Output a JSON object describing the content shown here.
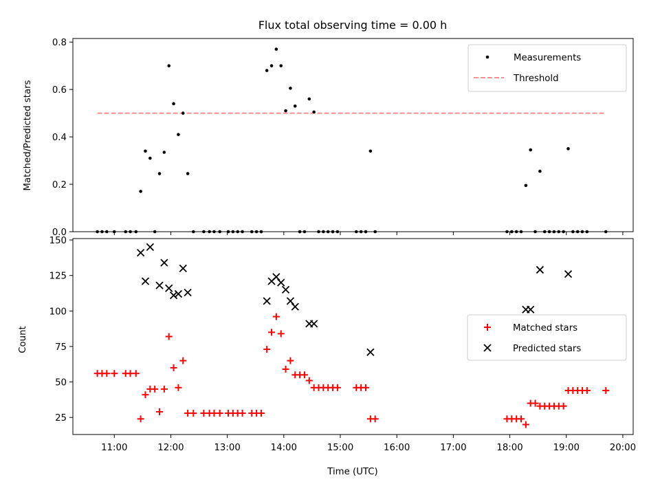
{
  "chart_data": [
    {
      "type": "scatter",
      "title": "Flux total observing time = 0.00 h",
      "xlabel": "",
      "ylabel": "Matched/Predicted stars",
      "xlim": [
        "10:16",
        "20:11"
      ],
      "ylim": [
        0,
        0.815
      ],
      "yticks": [
        "0.0",
        "0.2",
        "0.4",
        "0.6",
        "0.8"
      ],
      "grid": false,
      "legend_position": "top-right",
      "threshold": {
        "name": "Threshold",
        "value": 0.5,
        "x_start": "10:42",
        "x_end": "19:42",
        "color": "#ff7f7f",
        "style": "dashed"
      },
      "series": [
        {
          "name": "Measurements",
          "color": "#000000",
          "marker": "dot",
          "points": [
            [
              "10:42",
              0
            ],
            [
              "10:47",
              0
            ],
            [
              "10:52",
              0
            ],
            [
              "11:00",
              0
            ],
            [
              "11:12",
              0
            ],
            [
              "11:17",
              0
            ],
            [
              "11:23",
              0
            ],
            [
              "11:28",
              0.17
            ],
            [
              "11:33",
              0.34
            ],
            [
              "11:38",
              0.31
            ],
            [
              "11:43",
              0
            ],
            [
              "11:48",
              0.245
            ],
            [
              "11:53",
              0.335
            ],
            [
              "11:58",
              0.7
            ],
            [
              "12:03",
              0.54
            ],
            [
              "12:08",
              0.41
            ],
            [
              "12:13",
              0.5
            ],
            [
              "12:18",
              0.245
            ],
            [
              "12:24",
              0
            ],
            [
              "12:35",
              0
            ],
            [
              "12:41",
              0
            ],
            [
              "12:46",
              0
            ],
            [
              "12:52",
              0
            ],
            [
              "13:01",
              0
            ],
            [
              "13:06",
              0
            ],
            [
              "13:11",
              0
            ],
            [
              "13:16",
              0
            ],
            [
              "13:26",
              0
            ],
            [
              "13:31",
              0
            ],
            [
              "13:36",
              0
            ],
            [
              "13:42",
              0.68
            ],
            [
              "13:47",
              0.7
            ],
            [
              "13:52",
              0.77
            ],
            [
              "13:57",
              0.7
            ],
            [
              "14:02",
              0.51
            ],
            [
              "14:07",
              0.605
            ],
            [
              "14:12",
              0.53
            ],
            [
              "14:17",
              0
            ],
            [
              "14:22",
              0
            ],
            [
              "14:27",
              0.56
            ],
            [
              "14:32",
              0.505
            ],
            [
              "14:37",
              0
            ],
            [
              "14:42",
              0
            ],
            [
              "14:47",
              0
            ],
            [
              "14:52",
              0
            ],
            [
              "14:57",
              0
            ],
            [
              "15:17",
              0
            ],
            [
              "15:22",
              0
            ],
            [
              "15:27",
              0
            ],
            [
              "15:32",
              0.34
            ],
            [
              "15:37",
              0
            ],
            [
              "17:57",
              0
            ],
            [
              "18:02",
              0
            ],
            [
              "18:07",
              0
            ],
            [
              "18:12",
              0
            ],
            [
              "18:17",
              0.195
            ],
            [
              "18:22",
              0.345
            ],
            [
              "18:27",
              0
            ],
            [
              "18:32",
              0.255
            ],
            [
              "18:37",
              0
            ],
            [
              "18:42",
              0
            ],
            [
              "18:47",
              0
            ],
            [
              "18:52",
              0
            ],
            [
              "18:57",
              0
            ],
            [
              "19:02",
              0.35
            ],
            [
              "19:07",
              0
            ],
            [
              "19:12",
              0
            ],
            [
              "19:17",
              0
            ],
            [
              "19:22",
              0
            ],
            [
              "19:42",
              0
            ]
          ]
        }
      ]
    },
    {
      "type": "scatter",
      "title": "",
      "xlabel": "Time (UTC)",
      "ylabel": "Count",
      "xlim": [
        "10:16",
        "20:11"
      ],
      "ylim": [
        13,
        151
      ],
      "yticks": [
        "25",
        "50",
        "75",
        "100",
        "125",
        "150"
      ],
      "xticks": [
        "11:00",
        "12:00",
        "13:00",
        "14:00",
        "15:00",
        "16:00",
        "17:00",
        "18:00",
        "19:00",
        "20:00"
      ],
      "grid": false,
      "legend_position": "center-right",
      "series": [
        {
          "name": "Matched stars",
          "color": "#ff0000",
          "marker": "plus",
          "points": [
            [
              "10:42",
              56
            ],
            [
              "10:47",
              56
            ],
            [
              "10:52",
              56
            ],
            [
              "11:00",
              56
            ],
            [
              "11:12",
              56
            ],
            [
              "11:17",
              56
            ],
            [
              "11:23",
              56
            ],
            [
              "11:28",
              24
            ],
            [
              "11:33",
              41
            ],
            [
              "11:38",
              45
            ],
            [
              "11:43",
              45
            ],
            [
              "11:48",
              29
            ],
            [
              "11:53",
              45
            ],
            [
              "11:58",
              82
            ],
            [
              "12:03",
              60
            ],
            [
              "12:08",
              46
            ],
            [
              "12:13",
              65
            ],
            [
              "12:18",
              28
            ],
            [
              "12:24",
              28
            ],
            [
              "12:35",
              28
            ],
            [
              "12:41",
              28
            ],
            [
              "12:46",
              28
            ],
            [
              "12:52",
              28
            ],
            [
              "13:01",
              28
            ],
            [
              "13:06",
              28
            ],
            [
              "13:11",
              28
            ],
            [
              "13:16",
              28
            ],
            [
              "13:26",
              28
            ],
            [
              "13:31",
              28
            ],
            [
              "13:36",
              28
            ],
            [
              "13:42",
              73
            ],
            [
              "13:47",
              85
            ],
            [
              "13:52",
              96
            ],
            [
              "13:57",
              84
            ],
            [
              "14:02",
              59
            ],
            [
              "14:07",
              65
            ],
            [
              "14:12",
              55
            ],
            [
              "14:17",
              55
            ],
            [
              "14:22",
              55
            ],
            [
              "14:27",
              51
            ],
            [
              "14:32",
              46
            ],
            [
              "14:37",
              46
            ],
            [
              "14:42",
              46
            ],
            [
              "14:47",
              46
            ],
            [
              "14:52",
              46
            ],
            [
              "14:57",
              46
            ],
            [
              "15:17",
              46
            ],
            [
              "15:22",
              46
            ],
            [
              "15:27",
              46
            ],
            [
              "15:32",
              24
            ],
            [
              "15:37",
              24
            ],
            [
              "17:57",
              24
            ],
            [
              "18:02",
              24
            ],
            [
              "18:07",
              24
            ],
            [
              "18:12",
              24
            ],
            [
              "18:17",
              20
            ],
            [
              "18:22",
              35
            ],
            [
              "18:27",
              35
            ],
            [
              "18:32",
              33
            ],
            [
              "18:37",
              33
            ],
            [
              "18:42",
              33
            ],
            [
              "18:47",
              33
            ],
            [
              "18:52",
              33
            ],
            [
              "18:57",
              33
            ],
            [
              "19:02",
              44
            ],
            [
              "19:07",
              44
            ],
            [
              "19:12",
              44
            ],
            [
              "19:17",
              44
            ],
            [
              "19:22",
              44
            ],
            [
              "19:42",
              44
            ]
          ]
        },
        {
          "name": "Predicted stars",
          "color": "#000000",
          "marker": "x",
          "points": [
            [
              "11:28",
              141
            ],
            [
              "11:33",
              121
            ],
            [
              "11:38",
              145
            ],
            [
              "11:48",
              118
            ],
            [
              "11:53",
              134
            ],
            [
              "11:58",
              116
            ],
            [
              "12:03",
              111
            ],
            [
              "12:08",
              112
            ],
            [
              "12:13",
              130
            ],
            [
              "12:18",
              113
            ],
            [
              "13:42",
              107
            ],
            [
              "13:47",
              121
            ],
            [
              "13:52",
              124
            ],
            [
              "13:57",
              120
            ],
            [
              "14:02",
              115
            ],
            [
              "14:07",
              107
            ],
            [
              "14:12",
              103
            ],
            [
              "14:27",
              91
            ],
            [
              "14:32",
              91
            ],
            [
              "15:32",
              71
            ],
            [
              "18:17",
              101
            ],
            [
              "18:22",
              101
            ],
            [
              "18:32",
              129
            ],
            [
              "19:02",
              126
            ]
          ]
        }
      ]
    }
  ]
}
